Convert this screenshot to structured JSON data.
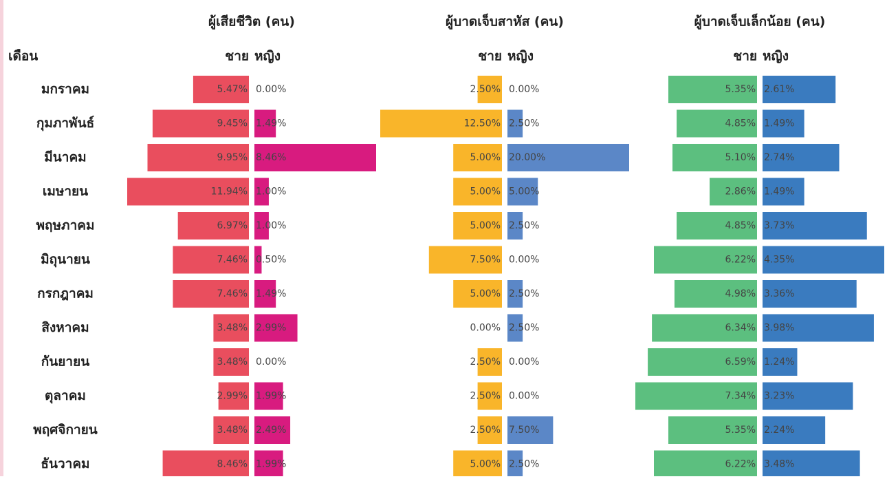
{
  "chart_data": {
    "type": "butterfly",
    "category_title": "เดือน",
    "categories": [
      "มกราคม",
      "กุมภาพันธ์",
      "มีนาคม",
      "เมษายน",
      "พฤษภาคม",
      "มิถุนายน",
      "กรกฎาคม",
      "สิงหาคม",
      "กันยายน",
      "ตุลาคม",
      "พฤศจิกายน",
      "ธันวาคม"
    ],
    "panels": [
      {
        "title": "ผู้เสียชีวิต (คน)",
        "series": [
          {
            "name": "ชาย",
            "color": "#e94e5e",
            "values": [
              5.47,
              9.45,
              9.95,
              11.94,
              6.97,
              7.46,
              7.46,
              3.48,
              3.48,
              2.99,
              3.48,
              8.46
            ],
            "value_labels": [
              "5.47%",
              "9.45%",
              "9.95%",
              "11.94%",
              "6.97%",
              "7.46%",
              "7.46%",
              "3.48%",
              "3.48%",
              "2.99%",
              "3.48%",
              "8.46%"
            ]
          },
          {
            "name": "หญิง",
            "color": "#d81b7f",
            "values": [
              0.0,
              1.49,
              8.46,
              1.0,
              1.0,
              0.5,
              1.49,
              2.99,
              0.0,
              1.99,
              2.49,
              1.99
            ],
            "value_labels": [
              "0.00%",
              "1.49%",
              "8.46%",
              "1.00%",
              "1.00%",
              "0.50%",
              "1.49%",
              "2.99%",
              "0.00%",
              "1.99%",
              "2.49%",
              "1.99%"
            ]
          }
        ]
      },
      {
        "title": "ผู้บาดเจ็บสาหัส (คน)",
        "series": [
          {
            "name": "ชาย",
            "color": "#f9b52a",
            "values": [
              2.5,
              12.5,
              5.0,
              5.0,
              5.0,
              7.5,
              5.0,
              0.0,
              2.5,
              2.5,
              2.5,
              5.0
            ],
            "value_labels": [
              "2.50%",
              "12.50%",
              "5.00%",
              "5.00%",
              "5.00%",
              "7.50%",
              "5.00%",
              "0.00%",
              "2.50%",
              "2.50%",
              "2.50%",
              "5.00%"
            ]
          },
          {
            "name": "หญิง",
            "color": "#5b87c7",
            "values": [
              0.0,
              2.5,
              20.0,
              5.0,
              2.5,
              0.0,
              2.5,
              2.5,
              0.0,
              0.0,
              7.5,
              2.5
            ],
            "value_labels": [
              "0.00%",
              "2.50%",
              "20.00%",
              "5.00%",
              "2.50%",
              "0.00%",
              "2.50%",
              "2.50%",
              "0.00%",
              "0.00%",
              "7.50%",
              "2.50%"
            ]
          }
        ]
      },
      {
        "title": "ผู้บาดเจ็บเล็กน้อย (คน)",
        "series": [
          {
            "name": "ชาย",
            "color": "#5cbf7f",
            "values": [
              5.35,
              4.85,
              5.1,
              2.86,
              4.85,
              6.22,
              4.98,
              6.34,
              6.59,
              7.34,
              5.35,
              6.22
            ],
            "value_labels": [
              "5.35%",
              "4.85%",
              "5.10%",
              "2.86%",
              "4.85%",
              "6.22%",
              "4.98%",
              "6.34%",
              "6.59%",
              "7.34%",
              "5.35%",
              "6.22%"
            ]
          },
          {
            "name": "หญิง",
            "color": "#3a7bbf",
            "values": [
              2.61,
              1.49,
              2.74,
              1.49,
              3.73,
              4.35,
              3.36,
              3.98,
              1.24,
              3.23,
              2.24,
              3.48
            ],
            "value_labels": [
              "2.61%",
              "1.49%",
              "2.74%",
              "1.49%",
              "3.73%",
              "4.35%",
              "3.36%",
              "3.98%",
              "1.24%",
              "3.23%",
              "2.24%",
              "3.48%"
            ]
          }
        ]
      }
    ]
  }
}
